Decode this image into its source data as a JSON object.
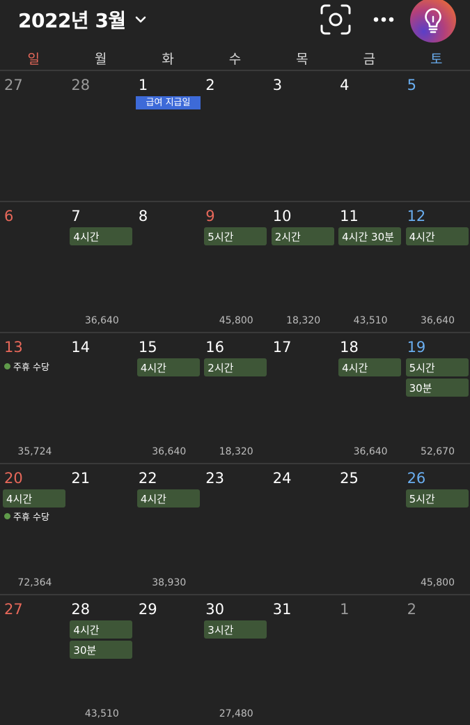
{
  "header": {
    "title": "2022년 3월",
    "icons": [
      "chevron-down-icon",
      "scan-icon",
      "more-icon",
      "lightbulb-icon"
    ],
    "accent_gradient": [
      "#5a3fc8",
      "#b2407c",
      "#e76a3a"
    ]
  },
  "weekdays": [
    "일",
    "월",
    "화",
    "수",
    "목",
    "금",
    "토"
  ],
  "colors": {
    "sunday": "#e8685a",
    "saturday": "#6aaef0",
    "event": "#3e5637",
    "payday": "#3d6ad8",
    "background": "#232323"
  },
  "payday_label": "급여 지급일",
  "allowance_label": "주휴 수당",
  "weeks": [
    {
      "days": [
        {
          "n": "27",
          "muted": true,
          "events": []
        },
        {
          "n": "28",
          "muted": true,
          "events": []
        },
        {
          "n": "1",
          "events": [],
          "payday": true
        },
        {
          "n": "2",
          "events": []
        },
        {
          "n": "3",
          "events": []
        },
        {
          "n": "4",
          "events": []
        },
        {
          "n": "5",
          "events": []
        }
      ]
    },
    {
      "days": [
        {
          "n": "6",
          "events": []
        },
        {
          "n": "7",
          "events": [
            "4시간"
          ],
          "wage": "36,640"
        },
        {
          "n": "8",
          "events": []
        },
        {
          "n": "9",
          "events": [
            "5시간"
          ],
          "wage": "45,800",
          "red": true
        },
        {
          "n": "10",
          "events": [
            "2시간"
          ],
          "wage": "18,320"
        },
        {
          "n": "11",
          "events": [
            "4시간 30분"
          ],
          "wage": "43,510"
        },
        {
          "n": "12",
          "events": [
            "4시간"
          ],
          "wage": "36,640"
        }
      ]
    },
    {
      "days": [
        {
          "n": "13",
          "events": [],
          "allowance": true,
          "wage": "35,724"
        },
        {
          "n": "14",
          "events": []
        },
        {
          "n": "15",
          "events": [
            "4시간"
          ],
          "wage": "36,640"
        },
        {
          "n": "16",
          "events": [
            "2시간"
          ],
          "wage": "18,320"
        },
        {
          "n": "17",
          "events": []
        },
        {
          "n": "18",
          "events": [
            "4시간"
          ],
          "wage": "36,640"
        },
        {
          "n": "19",
          "events": [
            "5시간",
            "30분"
          ],
          "wage": "52,670"
        }
      ]
    },
    {
      "days": [
        {
          "n": "20",
          "events": [
            "4시간"
          ],
          "allowance": true,
          "wage": "72,364"
        },
        {
          "n": "21",
          "events": []
        },
        {
          "n": "22",
          "events": [
            "4시간"
          ],
          "wage": "38,930"
        },
        {
          "n": "23",
          "events": []
        },
        {
          "n": "24",
          "events": []
        },
        {
          "n": "25",
          "events": []
        },
        {
          "n": "26",
          "events": [
            "5시간"
          ],
          "wage": "45,800"
        }
      ]
    },
    {
      "days": [
        {
          "n": "27",
          "events": []
        },
        {
          "n": "28",
          "events": [
            "4시간",
            "30분"
          ],
          "wage": "43,510"
        },
        {
          "n": "29",
          "events": []
        },
        {
          "n": "30",
          "events": [
            "3시간"
          ],
          "wage": "27,480"
        },
        {
          "n": "31",
          "events": []
        },
        {
          "n": "1",
          "muted": true,
          "events": []
        },
        {
          "n": "2",
          "muted": true,
          "events": []
        }
      ]
    }
  ]
}
